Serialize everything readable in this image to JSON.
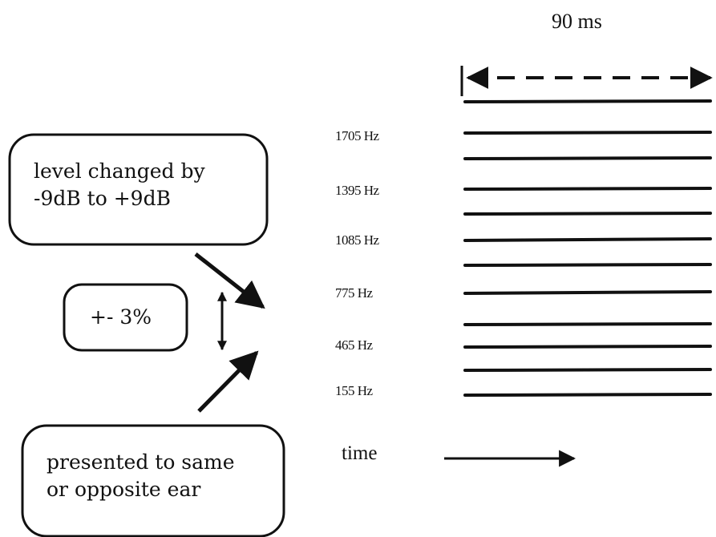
{
  "duration_label": "90 ms",
  "frequencies": [
    "1705 Hz",
    "1395 Hz",
    "1085 Hz",
    "775 Hz",
    "465 Hz",
    "155 Hz"
  ],
  "level_box": {
    "line1": "level changed by",
    "line2": "-9dB to +9dB"
  },
  "shift_box": {
    "label": "+- 3%"
  },
  "ear_box": {
    "line1": "presented  to same",
    "line2": "or opposite ear"
  },
  "time_label": "time",
  "ink_color": "#111111",
  "icons": [
    "double-arrow-left-right-icon",
    "double-arrow-up-down-icon",
    "arrow-down-right-icon",
    "arrow-up-right-icon",
    "arrow-right-icon"
  ]
}
